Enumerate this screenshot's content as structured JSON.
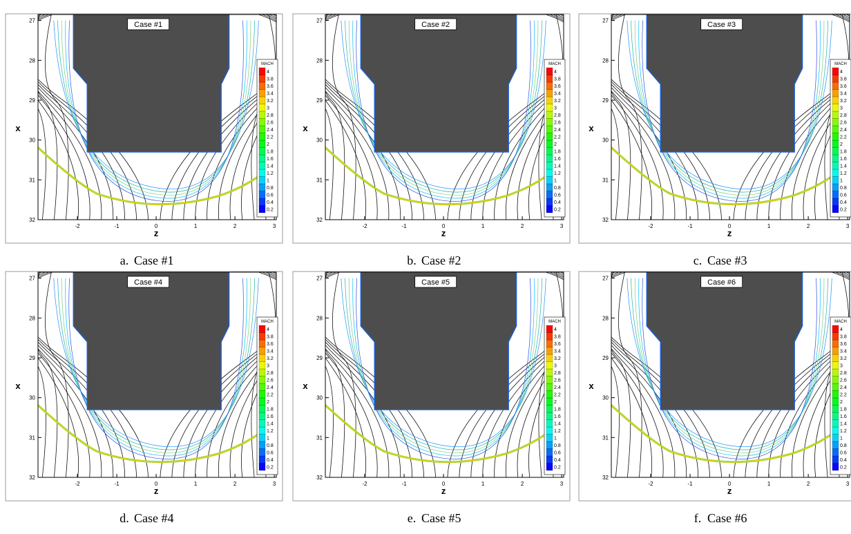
{
  "axes": {
    "xlabel": "z",
    "ylabel": "x",
    "xlim": [
      -3,
      3.05
    ],
    "ylim": [
      26.85,
      32
    ],
    "xticks": [
      -2,
      -1,
      0,
      1,
      2,
      3
    ],
    "yticks": [
      27,
      28,
      29,
      30,
      31,
      32
    ]
  },
  "colorbar": {
    "title": "MACH",
    "levels": [
      0.2,
      0.4,
      0.6,
      0.8,
      1,
      1.2,
      1.4,
      1.6,
      1.8,
      2,
      2.2,
      2.4,
      2.6,
      2.8,
      3,
      3.2,
      3.4,
      3.6,
      3.8,
      4
    ]
  },
  "panels": [
    {
      "label": "Case #1",
      "tag": "a.",
      "caption": "Case #1"
    },
    {
      "label": "Case #2",
      "tag": "b.",
      "caption": "Case #2"
    },
    {
      "label": "Case #3",
      "tag": "c.",
      "caption": "Case #3"
    },
    {
      "label": "Case #4",
      "tag": "d.",
      "caption": "Case #4"
    },
    {
      "label": "Case #5",
      "tag": "e.",
      "caption": "Case #5"
    },
    {
      "label": "Case #6",
      "tag": "f.",
      "caption": "Case #6"
    }
  ]
}
